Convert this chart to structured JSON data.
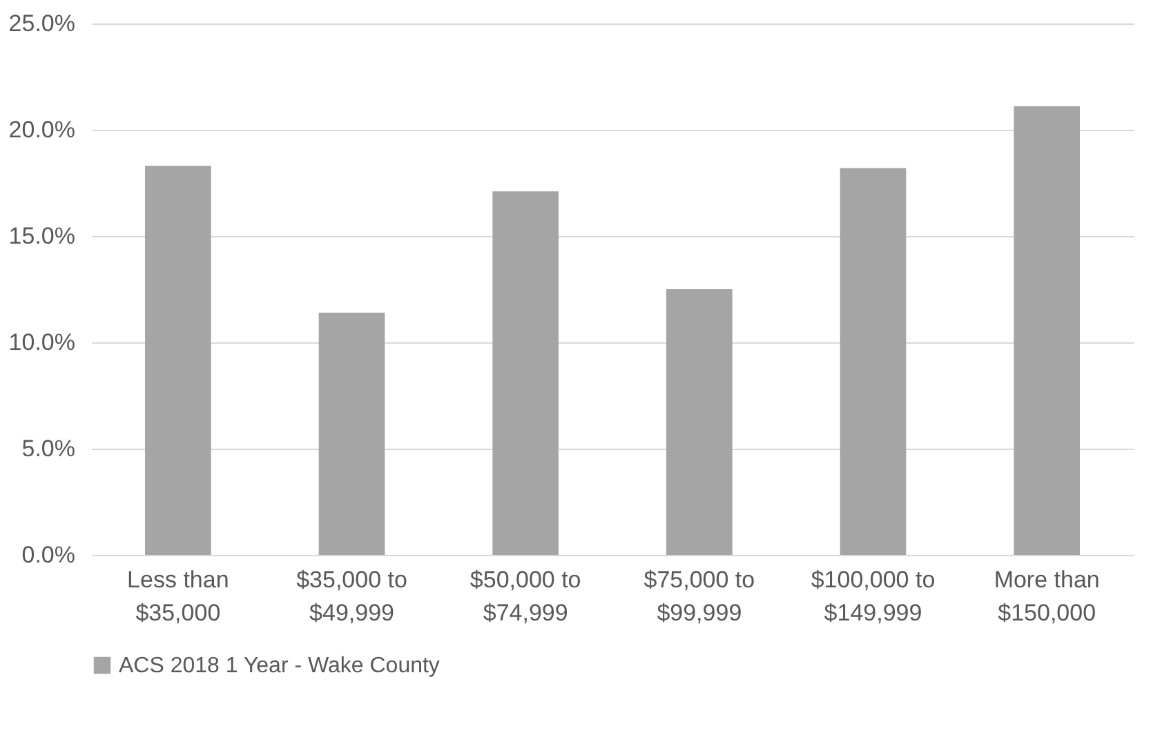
{
  "chart_data": {
    "type": "bar",
    "categories": [
      "Less than $35,000",
      "$35,000 to $49,999",
      "$50,000 to $74,999",
      "$75,000 to $99,999",
      "$100,000 to $149,999",
      "More than $150,000"
    ],
    "series": [
      {
        "name": "ACS 2018 1 Year - Wake County",
        "color": "#a5a5a5",
        "values": [
          18.3,
          11.4,
          17.1,
          12.5,
          18.2,
          21.1
        ]
      }
    ],
    "ylim": [
      0,
      25
    ],
    "yticks": [
      {
        "value": 0,
        "label": "0.0%"
      },
      {
        "value": 5,
        "label": "5.0%"
      },
      {
        "value": 10,
        "label": "10.0%"
      },
      {
        "value": 15,
        "label": "15.0%"
      },
      {
        "value": 20,
        "label": "20.0%"
      },
      {
        "value": 25,
        "label": "25.0%"
      }
    ],
    "grid": "y",
    "legend": "bottom"
  }
}
